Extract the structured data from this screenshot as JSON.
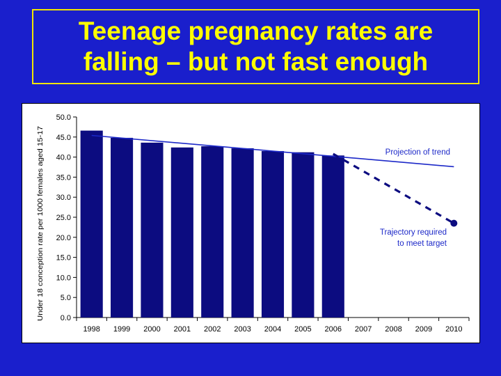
{
  "page": {
    "title_line1": "Teenage pregnancy rates are",
    "title_line2": "falling – but not fast enough"
  },
  "colors": {
    "background": "#1a1fcc",
    "title": "#ffff00",
    "bar": "#0c0c80",
    "trend_line": "#1c28c8",
    "trajectory": "#0c0c80"
  },
  "chart_data": {
    "type": "bar",
    "title": "",
    "ylabel": "Under 18 conception rate per 1000 females aged 15-17",
    "xlabel": "",
    "categories": [
      "1998",
      "1999",
      "2000",
      "2001",
      "2002",
      "2003",
      "2004",
      "2005",
      "2006",
      "2007",
      "2008",
      "2009",
      "2010"
    ],
    "ylim": [
      0,
      50
    ],
    "yticks": [
      "0.0",
      "5.0",
      "10.0",
      "15.0",
      "20.0",
      "25.0",
      "30.0",
      "35.0",
      "40.0",
      "45.0",
      "50.0"
    ],
    "grid": false,
    "series": [
      {
        "values": [
          46.6,
          44.8,
          43.6,
          42.4,
          42.7,
          42.2,
          41.5,
          41.2,
          40.4,
          null,
          null,
          null,
          null
        ]
      }
    ],
    "trend_line": {
      "x": [
        "1998",
        "2010"
      ],
      "y": [
        45.4,
        37.6
      ]
    },
    "target_trajectory": {
      "x": [
        "2006",
        "2010"
      ],
      "y": [
        40.8,
        23.5
      ]
    },
    "annotations": {
      "trend_label": "Projection of trend",
      "trajectory_label_line1": "Trajectory required",
      "trajectory_label_line2": "to meet target"
    }
  }
}
